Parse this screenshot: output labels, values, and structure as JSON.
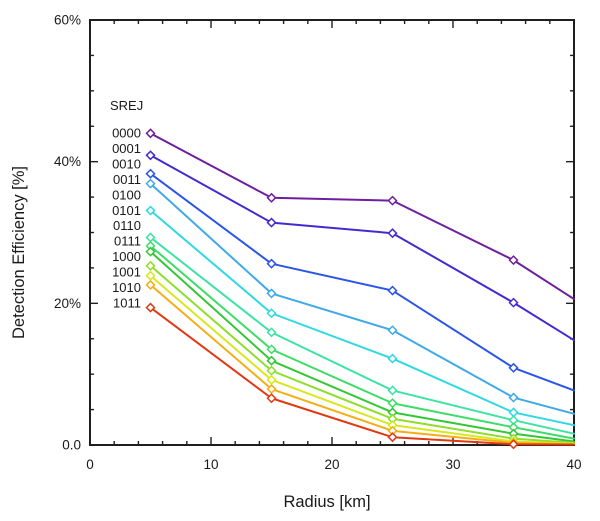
{
  "chart_data": {
    "type": "line",
    "title": "",
    "xlabel": "Radius [km]",
    "ylabel": "Detection Efficiency [%]",
    "xlim": [
      0,
      40
    ],
    "ylim": [
      0,
      60
    ],
    "grid": false,
    "legend_position": "inside-top-left",
    "legend_title": "SREJ",
    "x_major_ticks": [
      0,
      10,
      20,
      30,
      40
    ],
    "x_tick_labels": [
      "0",
      "10",
      "20",
      "30",
      "40"
    ],
    "x_minor_step": 2,
    "y_major_ticks": [
      0,
      20,
      40,
      60
    ],
    "y_tick_labels": [
      "0.0",
      "20%",
      "40%",
      "60%"
    ],
    "y_minor_step": 5,
    "x": [
      5,
      15,
      25,
      35,
      40
    ],
    "marker_x": [
      5,
      15,
      25,
      35
    ],
    "marker_shape": "diamond-open",
    "series": [
      {
        "name": "0000",
        "color": "#6E1E9E",
        "values": [
          44.0,
          34.9,
          34.5,
          26.1,
          20.6
        ]
      },
      {
        "name": "0001",
        "color": "#4629D0",
        "values": [
          40.9,
          31.4,
          29.9,
          20.1,
          14.8
        ]
      },
      {
        "name": "0010",
        "color": "#2B55E8",
        "values": [
          38.3,
          25.6,
          21.8,
          10.9,
          7.7
        ]
      },
      {
        "name": "0011",
        "color": "#3FA9EA",
        "values": [
          36.9,
          21.4,
          16.2,
          6.7,
          4.4
        ]
      },
      {
        "name": "0100",
        "color": "#2FD8E2",
        "values": [
          33.1,
          18.6,
          12.2,
          4.6,
          2.8
        ]
      },
      {
        "name": "0101",
        "color": "#3CE3A4",
        "values": [
          29.3,
          15.9,
          7.7,
          3.5,
          1.6
        ]
      },
      {
        "name": "0110",
        "color": "#3EDC68",
        "values": [
          28.1,
          13.5,
          5.9,
          2.5,
          0.9
        ]
      },
      {
        "name": "0111",
        "color": "#33C733",
        "values": [
          27.3,
          11.9,
          4.6,
          1.6,
          0.5
        ]
      },
      {
        "name": "1000",
        "color": "#8EDE2A",
        "values": [
          25.3,
          10.5,
          3.7,
          0.9,
          0.3
        ]
      },
      {
        "name": "1001",
        "color": "#D8E81C",
        "values": [
          23.9,
          9.2,
          2.8,
          0.5,
          0.2
        ]
      },
      {
        "name": "1010",
        "color": "#F4AE16",
        "values": [
          22.6,
          7.9,
          2.0,
          0.3,
          0.1
        ]
      },
      {
        "name": "1011",
        "color": "#E23812",
        "values": [
          19.4,
          6.6,
          1.1,
          0.1,
          0.05
        ]
      }
    ],
    "axis_color": "#1f1f1f",
    "background_color": "#ffffff"
  }
}
